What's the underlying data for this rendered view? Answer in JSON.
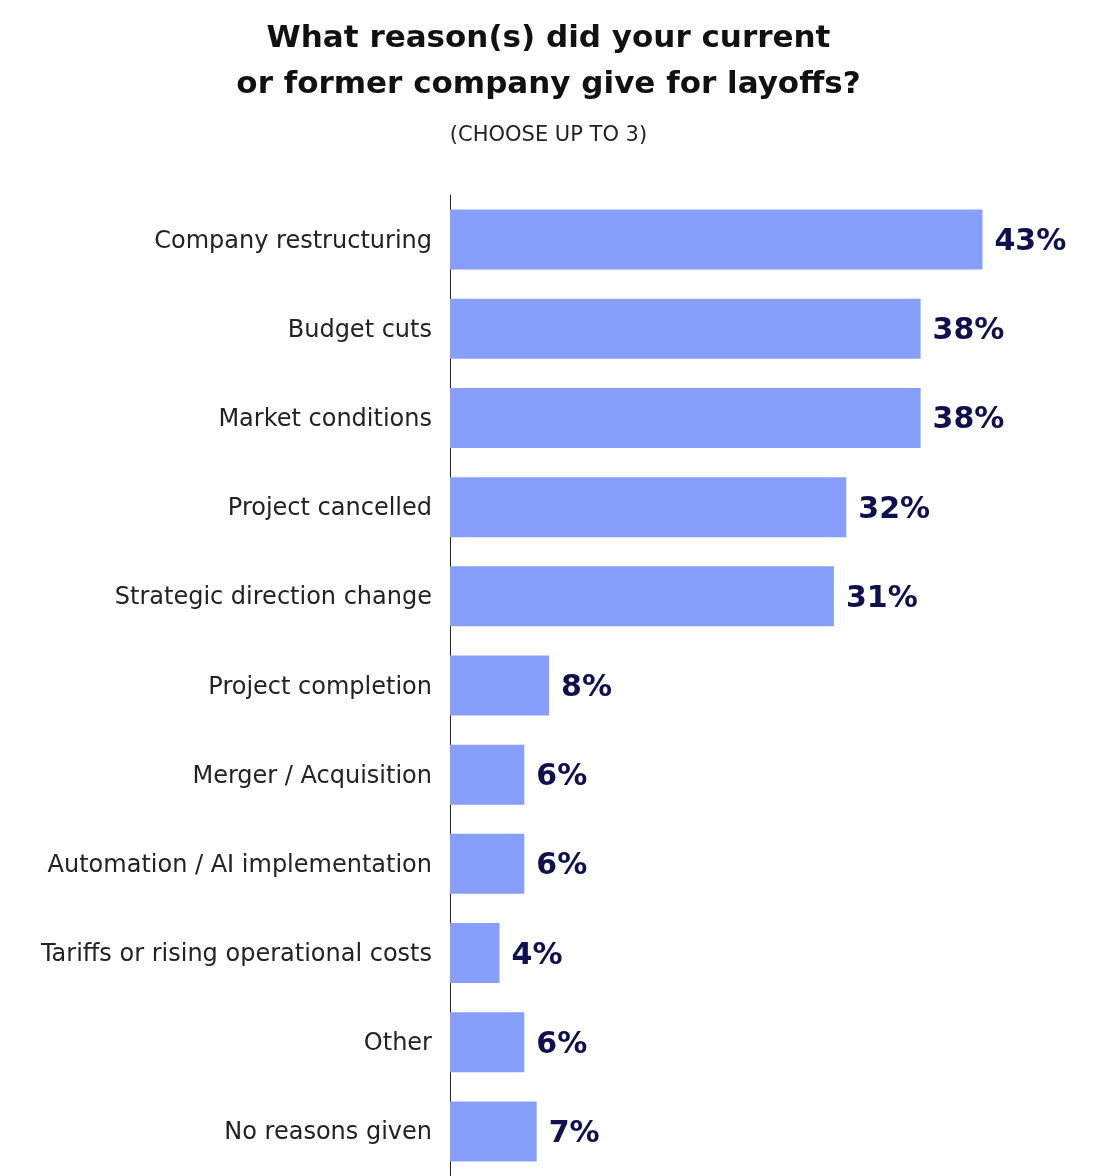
{
  "chart_data": {
    "type": "bar",
    "orientation": "horizontal",
    "title": "What reason(s) did your current\nor former company give for layoffs?",
    "subtitle": "(CHOOSE UP TO 3)",
    "categories": [
      "Company restructuring",
      "Budget cuts",
      "Market conditions",
      "Project cancelled",
      "Strategic direction change",
      "Project completion",
      "Merger / Acquisition",
      "Automation / AI implementation",
      "Tariffs or rising operational costs",
      "Other",
      "No reasons given"
    ],
    "values": [
      43,
      38,
      38,
      32,
      31,
      8,
      6,
      6,
      4,
      6,
      7
    ],
    "value_labels": [
      "43%",
      "38%",
      "38%",
      "32%",
      "31%",
      "8%",
      "6%",
      "6%",
      "4%",
      "6%",
      "7%"
    ],
    "color": "#879ffa"
  }
}
